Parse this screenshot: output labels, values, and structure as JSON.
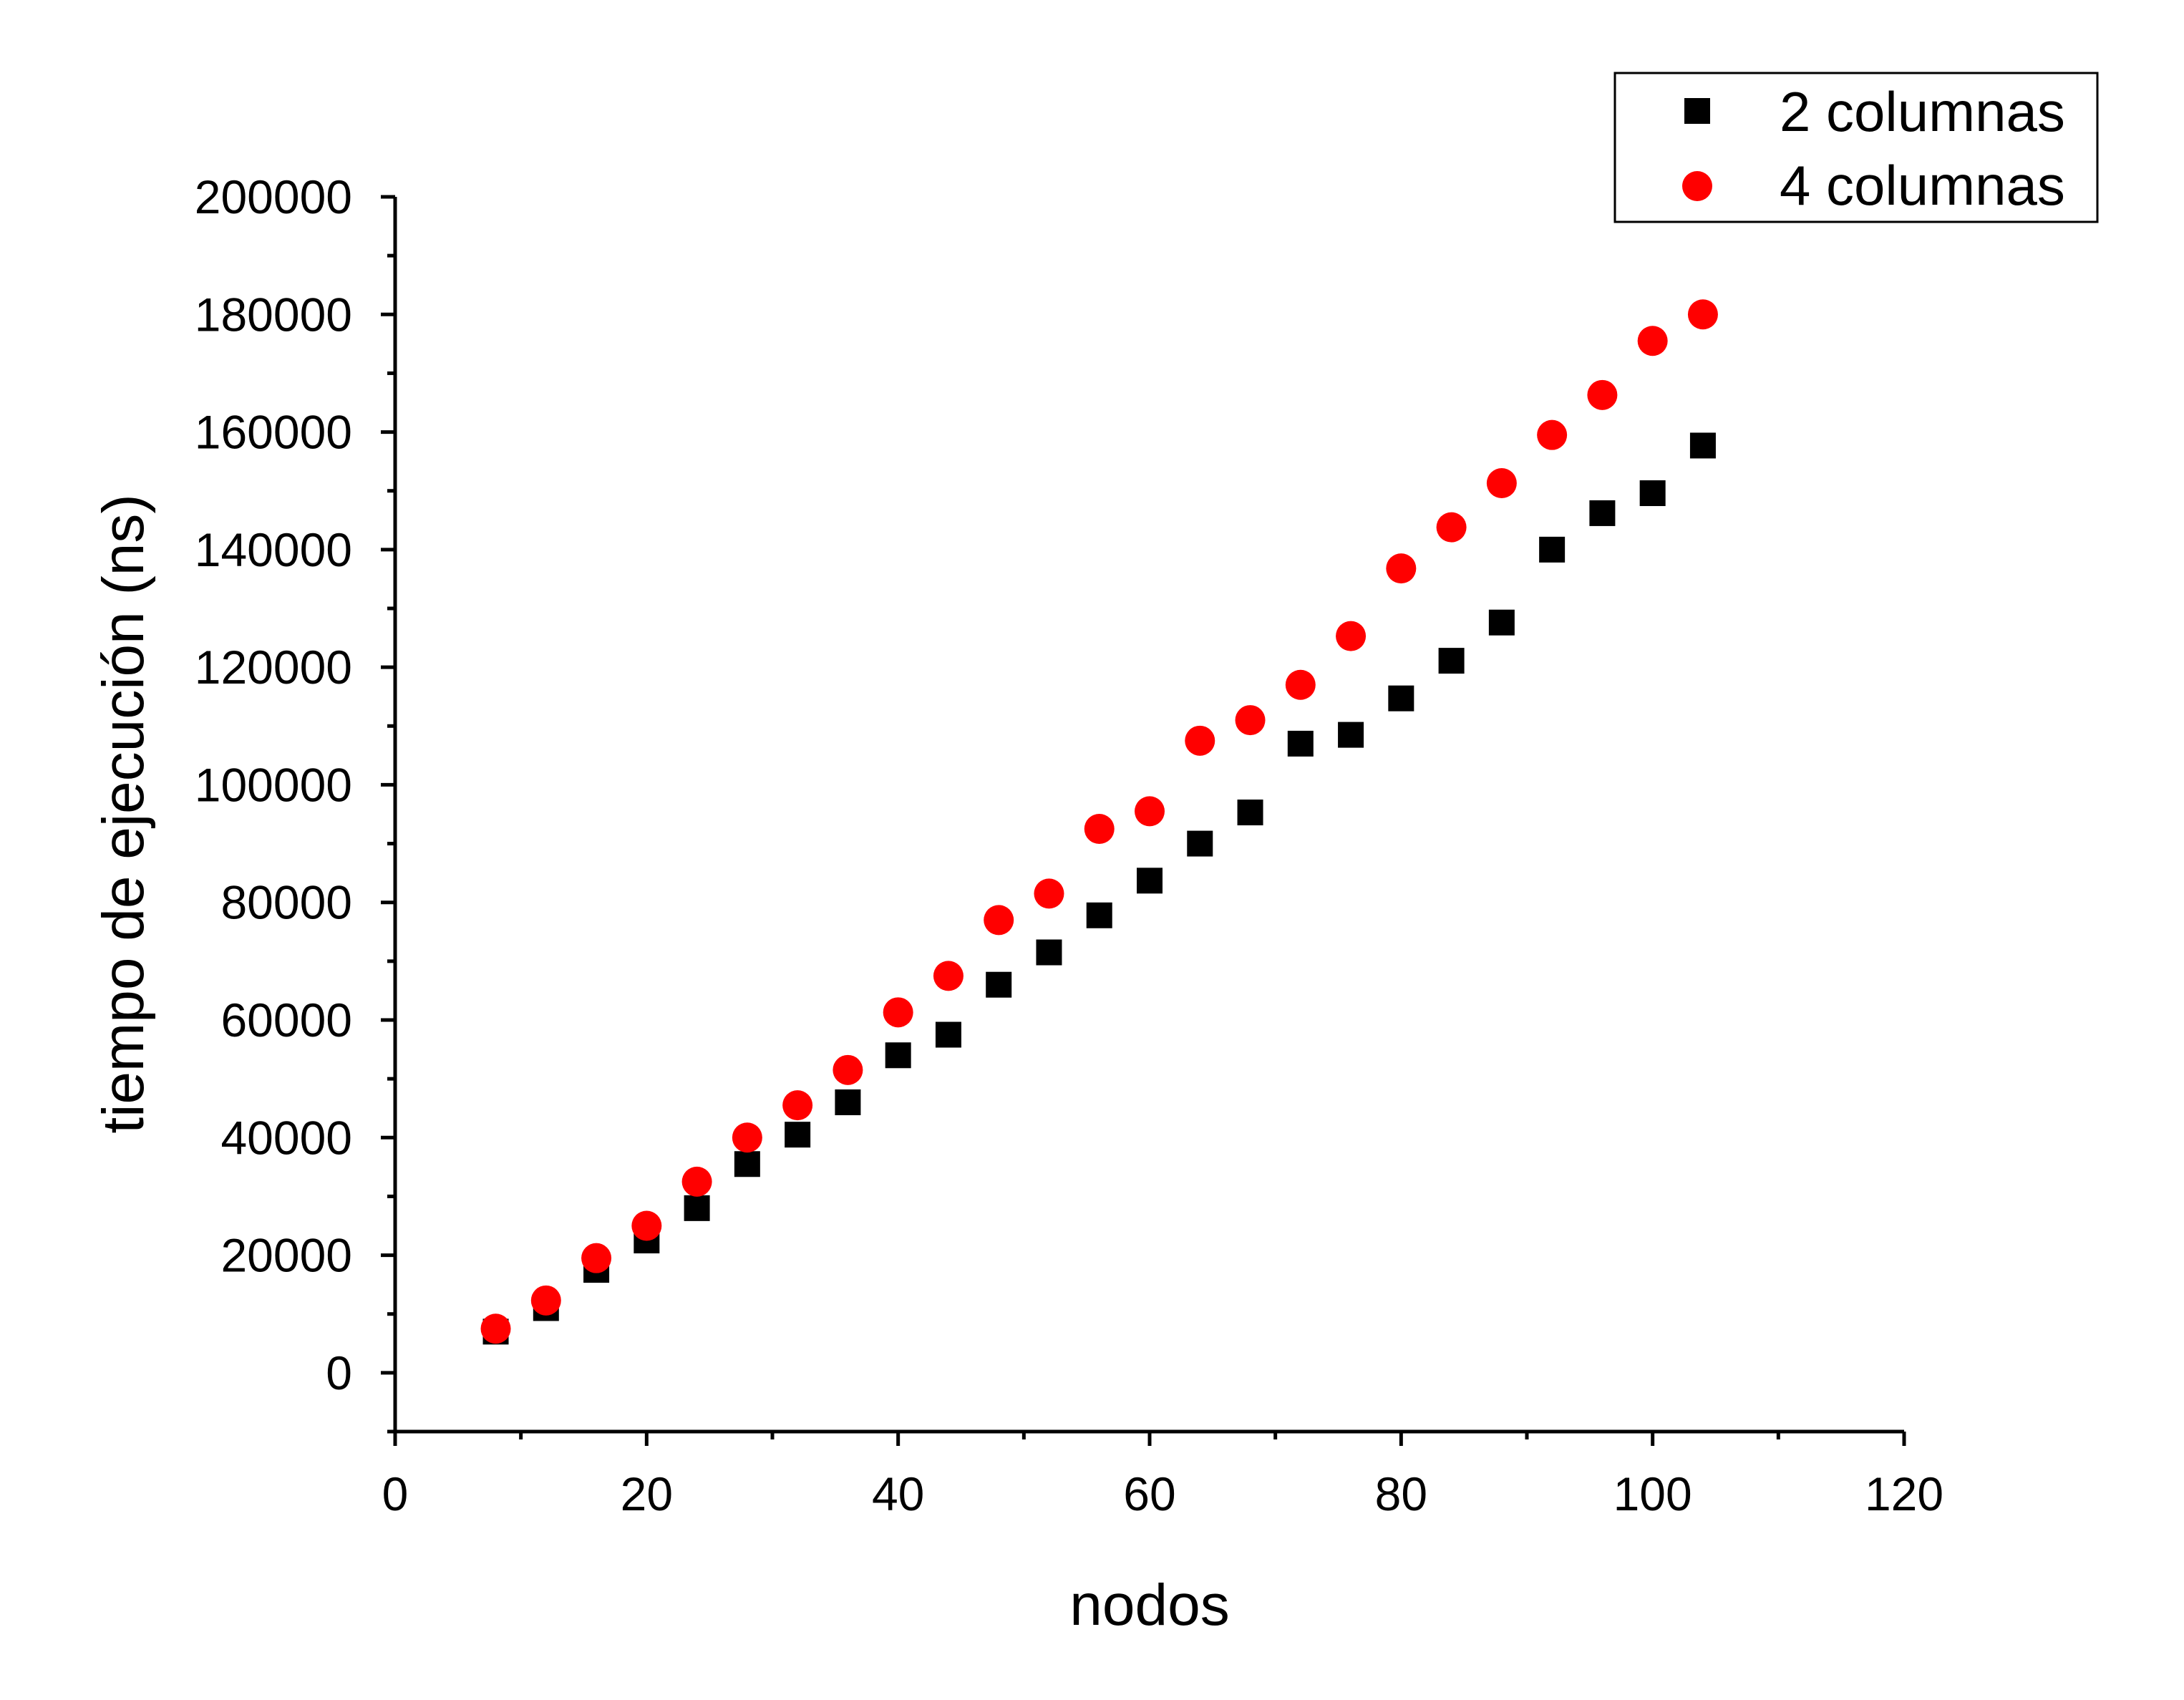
{
  "chart_data": {
    "type": "scatter",
    "title": "",
    "xlabel": "nodos",
    "ylabel": "tiempo de ejecución (ns)",
    "xlim": [
      0,
      120
    ],
    "ylim": [
      -10000,
      200000
    ],
    "x_ticks": [
      0,
      20,
      40,
      60,
      80,
      100,
      120
    ],
    "x_tick_labels": [
      "0",
      "20",
      "40",
      "60",
      "80",
      "100",
      "120"
    ],
    "x_minor_ticks": [
      10,
      30,
      50,
      70,
      90,
      110
    ],
    "y_ticks": [
      0,
      20000,
      40000,
      60000,
      80000,
      100000,
      120000,
      140000,
      160000,
      180000,
      200000
    ],
    "y_tick_labels": [
      "0",
      "20000",
      "40000",
      "60000",
      "80000",
      "100000",
      "120000",
      "140000",
      "160000",
      "180000",
      "200000"
    ],
    "y_minor_ticks": [
      -10000,
      10000,
      30000,
      50000,
      70000,
      90000,
      110000,
      130000,
      150000,
      170000,
      190000
    ],
    "grid": false,
    "legend_position": "top-right",
    "x": [
      8,
      12,
      16,
      20,
      24,
      28,
      32,
      36,
      40,
      44,
      48,
      52,
      56,
      60,
      64,
      68,
      72,
      76,
      80,
      84,
      88,
      92,
      96,
      100,
      104
    ],
    "series": [
      {
        "name": "2 columnas",
        "marker": "square",
        "color": "#000000",
        "values": [
          7000,
          11000,
          17500,
          22500,
          28000,
          35500,
          40500,
          46000,
          54000,
          57500,
          66000,
          71500,
          77800,
          83700,
          90000,
          95300,
          107000,
          108500,
          114700,
          121100,
          127600,
          140000,
          146200,
          149600,
          157700
        ]
      },
      {
        "name": "4 columnas",
        "marker": "circle",
        "color": "#ff0000",
        "values": [
          7500,
          12300,
          19500,
          25000,
          32500,
          40000,
          45500,
          51500,
          61300,
          67500,
          77000,
          81500,
          92500,
          95500,
          107500,
          111000,
          117000,
          125300,
          136800,
          143800,
          151300,
          159500,
          166300,
          175500,
          180000
        ]
      }
    ]
  }
}
